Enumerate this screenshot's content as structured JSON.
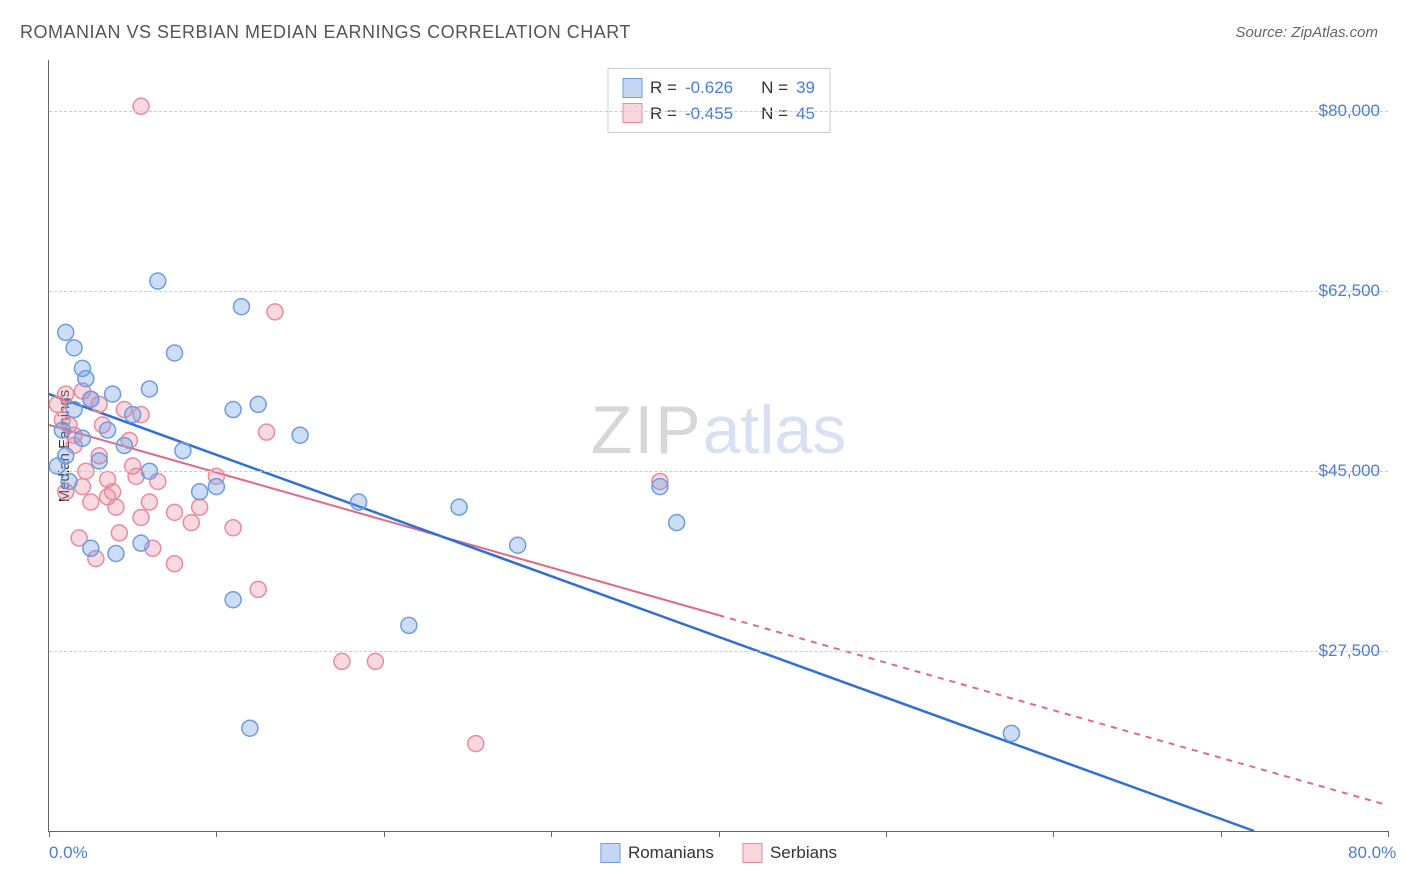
{
  "title": "ROMANIAN VS SERBIAN MEDIAN EARNINGS CORRELATION CHART",
  "source": "Source: ZipAtlas.com",
  "ylabel": "Median Earnings",
  "watermark_zip": "ZIP",
  "watermark_atlas": "atlas",
  "chart": {
    "type": "scatter",
    "xlim": [
      0,
      80
    ],
    "ylim": [
      10000,
      85000
    ],
    "x_tick_positions": [
      0,
      10,
      20,
      30,
      40,
      50,
      60,
      70,
      80
    ],
    "x_tick_labels_visible": {
      "0": "0.0%",
      "80": "80.0%"
    },
    "y_ticks": [
      27500,
      45000,
      62500,
      80000
    ],
    "y_tick_labels": [
      "$27,500",
      "$45,000",
      "$62,500",
      "$80,000"
    ],
    "background_color": "#ffffff",
    "grid_color": "#cccccc",
    "axis_color": "#666666",
    "tick_label_color": "#4a7dd8",
    "tick_fontsize": 17,
    "title_fontsize": 18,
    "title_color": "#555555",
    "marker_radius": 8,
    "marker_stroke_width": 1.5,
    "series": {
      "romanians": {
        "label": "Romanians",
        "color_fill": "rgba(108,157,226,0.35)",
        "color_stroke": "#6c9de2",
        "points": [
          [
            1.0,
            58500
          ],
          [
            1.5,
            57000
          ],
          [
            2.0,
            55000
          ],
          [
            6.5,
            63500
          ],
          [
            7.5,
            56500
          ],
          [
            2.5,
            52000
          ],
          [
            11.5,
            61000
          ],
          [
            1.5,
            51000
          ],
          [
            3.5,
            49000
          ],
          [
            5.0,
            50500
          ],
          [
            6.0,
            53000
          ],
          [
            11.0,
            51000
          ],
          [
            12.5,
            51500
          ],
          [
            15.0,
            48500
          ],
          [
            2.0,
            48200
          ],
          [
            3.0,
            46000
          ],
          [
            6.0,
            45000
          ],
          [
            9.0,
            43000
          ],
          [
            5.5,
            38000
          ],
          [
            2.5,
            37500
          ],
          [
            4.0,
            37000
          ],
          [
            1.0,
            46500
          ],
          [
            0.5,
            45500
          ],
          [
            11.0,
            32500
          ],
          [
            18.5,
            42000
          ],
          [
            24.5,
            41500
          ],
          [
            28.0,
            37800
          ],
          [
            21.5,
            30000
          ],
          [
            12.0,
            20000
          ],
          [
            57.5,
            19500
          ],
          [
            36.5,
            43500
          ],
          [
            37.5,
            40000
          ],
          [
            0.8,
            49000
          ],
          [
            2.2,
            54000
          ],
          [
            3.8,
            52500
          ],
          [
            1.2,
            44000
          ],
          [
            4.5,
            47500
          ],
          [
            8.0,
            47000
          ],
          [
            10.0,
            43500
          ]
        ],
        "regression": {
          "x1": 0,
          "y1": 52500,
          "x2": 72,
          "y2": 10000,
          "color": "#2f6fd8",
          "width": 2.5,
          "dash": ""
        }
      },
      "serbians": {
        "label": "Serbians",
        "color_fill": "rgba(232,138,160,0.32)",
        "color_stroke": "#e88aa0",
        "points": [
          [
            5.5,
            80500
          ],
          [
            1.0,
            52500
          ],
          [
            2.0,
            52800
          ],
          [
            2.5,
            52000
          ],
          [
            3.0,
            51500
          ],
          [
            4.5,
            51000
          ],
          [
            5.5,
            50500
          ],
          [
            13.5,
            60500
          ],
          [
            13.0,
            48800
          ],
          [
            1.5,
            47500
          ],
          [
            3.0,
            46500
          ],
          [
            5.0,
            45500
          ],
          [
            6.5,
            44000
          ],
          [
            3.5,
            44200
          ],
          [
            2.0,
            43500
          ],
          [
            1.0,
            43000
          ],
          [
            2.5,
            42000
          ],
          [
            4.0,
            41500
          ],
          [
            5.5,
            40500
          ],
          [
            7.5,
            41000
          ],
          [
            9.0,
            41500
          ],
          [
            10.0,
            44500
          ],
          [
            1.5,
            48500
          ],
          [
            0.8,
            50000
          ],
          [
            3.2,
            49500
          ],
          [
            4.8,
            48000
          ],
          [
            6.2,
            37500
          ],
          [
            7.5,
            36000
          ],
          [
            12.5,
            33500
          ],
          [
            17.5,
            26500
          ],
          [
            19.5,
            26500
          ],
          [
            36.5,
            44000
          ],
          [
            2.8,
            36500
          ],
          [
            1.8,
            38500
          ],
          [
            4.2,
            39000
          ],
          [
            25.5,
            18500
          ],
          [
            3.5,
            42500
          ],
          [
            6.0,
            42000
          ],
          [
            8.5,
            40000
          ],
          [
            11.0,
            39500
          ],
          [
            0.5,
            51500
          ],
          [
            1.2,
            49500
          ],
          [
            2.2,
            45000
          ],
          [
            3.8,
            43000
          ],
          [
            5.2,
            44500
          ]
        ],
        "regression": {
          "x1": 0,
          "y1": 49500,
          "x2": 80,
          "y2": 12500,
          "color": "#e06a86",
          "width": 2,
          "dash_solid_until_x": 40,
          "dash": "6 6"
        }
      }
    },
    "legend_top": [
      {
        "swatch": "blue",
        "r_label": "R =",
        "r_value": "-0.626",
        "n_label": "N =",
        "n_value": "39"
      },
      {
        "swatch": "pink",
        "r_label": "R =",
        "r_value": "-0.455",
        "n_label": "N =",
        "n_value": "45"
      }
    ],
    "legend_bottom": [
      {
        "swatch": "blue",
        "label": "Romanians"
      },
      {
        "swatch": "pink",
        "label": "Serbians"
      }
    ]
  }
}
